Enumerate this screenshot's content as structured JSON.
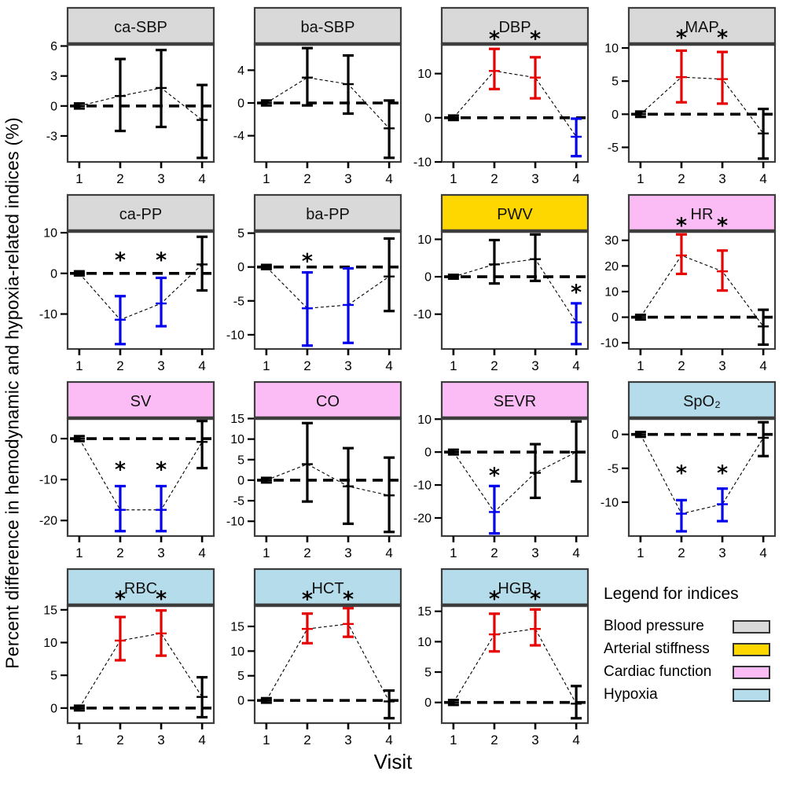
{
  "figure": {
    "ylabel": "Percent difference in hemodynamic and hypoxia-related indices (%)",
    "xlabel": "Visit",
    "sig_symbol": "*"
  },
  "colors": {
    "neutral": "#000000",
    "increase": "#e60000",
    "decrease": "#0000ee",
    "panel_border": "#3d3d3d",
    "group_colors": {
      "blood_pressure": "#d9d9d9",
      "arterial_stiffness": "#ffd700",
      "cardiac_function": "#fbbcf5",
      "hypoxia": "#b5dcea"
    }
  },
  "legend": {
    "title": "Legend for indices",
    "items": [
      {
        "label": "Blood pressure",
        "group": "blood_pressure"
      },
      {
        "label": "Arterial stiffness",
        "group": "arterial_stiffness"
      },
      {
        "label": "Cardiac function",
        "group": "cardiac_function"
      },
      {
        "label": "Hypoxia",
        "group": "hypoxia"
      }
    ]
  },
  "chart_data": {
    "type": "line",
    "x": [
      1,
      2,
      3,
      4
    ],
    "xlabel": "Visit",
    "ylabel": "Percent difference in hemodynamic and hypoxia-related indices (%)",
    "legend_position": "bottom-right cell",
    "grid": false,
    "panels": [
      {
        "title": "ca-SBP",
        "group": "blood_pressure",
        "ylim": [
          -5.6,
          6.2
        ],
        "yticks": [
          6,
          3,
          0,
          -3
        ],
        "points": [
          {
            "visit": 1,
            "y": 0,
            "lo": -0.25,
            "hi": 0.25,
            "color": "neutral",
            "star": false
          },
          {
            "visit": 2,
            "y": 1.0,
            "lo": -2.5,
            "hi": 4.7,
            "color": "neutral",
            "star": false
          },
          {
            "visit": 3,
            "y": 1.8,
            "lo": -2.1,
            "hi": 5.6,
            "color": "neutral",
            "star": false
          },
          {
            "visit": 4,
            "y": -1.4,
            "lo": -5.2,
            "hi": 2.1,
            "color": "neutral",
            "star": false
          }
        ]
      },
      {
        "title": "ba-SBP",
        "group": "blood_pressure",
        "ylim": [
          -7.2,
          7.2
        ],
        "yticks": [
          4,
          0,
          -4
        ],
        "points": [
          {
            "visit": 1,
            "y": 0,
            "lo": -0.3,
            "hi": 0.3,
            "color": "neutral",
            "star": false
          },
          {
            "visit": 2,
            "y": 3.1,
            "lo": -0.3,
            "hi": 6.7,
            "color": "neutral",
            "star": false
          },
          {
            "visit": 3,
            "y": 2.3,
            "lo": -1.3,
            "hi": 5.8,
            "color": "neutral",
            "star": false
          },
          {
            "visit": 4,
            "y": -3.1,
            "lo": -6.7,
            "hi": 0.3,
            "color": "neutral",
            "star": false
          }
        ]
      },
      {
        "title": "DBP",
        "group": "blood_pressure",
        "ylim": [
          -10,
          16.7
        ],
        "yticks": [
          10,
          0,
          -10
        ],
        "points": [
          {
            "visit": 1,
            "y": 0,
            "lo": -0.5,
            "hi": 0.5,
            "color": "neutral",
            "star": false
          },
          {
            "visit": 2,
            "y": 10.6,
            "lo": 6.5,
            "hi": 15.6,
            "color": "increase",
            "star": true,
            "star_y": 18.4
          },
          {
            "visit": 3,
            "y": 9.1,
            "lo": 4.4,
            "hi": 13.7,
            "color": "increase",
            "star": true,
            "star_y": 18.4
          },
          {
            "visit": 4,
            "y": -4.3,
            "lo": -8.7,
            "hi": -0.2,
            "color": "decrease",
            "star": false
          }
        ]
      },
      {
        "title": "MAP",
        "group": "blood_pressure",
        "ylim": [
          -7.2,
          10.6
        ],
        "yticks": [
          10,
          5,
          0,
          -5
        ],
        "points": [
          {
            "visit": 1,
            "y": 0,
            "lo": -0.4,
            "hi": 0.4,
            "color": "neutral",
            "star": false
          },
          {
            "visit": 2,
            "y": 5.6,
            "lo": 1.8,
            "hi": 9.6,
            "color": "increase",
            "star": true,
            "star_y": 11.9
          },
          {
            "visit": 3,
            "y": 5.3,
            "lo": 1.6,
            "hi": 9.4,
            "color": "increase",
            "star": true,
            "star_y": 11.9
          },
          {
            "visit": 4,
            "y": -2.9,
            "lo": -6.7,
            "hi": 0.8,
            "color": "neutral",
            "star": false
          }
        ]
      },
      {
        "title": "ca-PP",
        "group": "blood_pressure",
        "ylim": [
          -18.6,
          10.4
        ],
        "yticks": [
          10,
          0,
          -10
        ],
        "points": [
          {
            "visit": 1,
            "y": 0,
            "lo": -0.5,
            "hi": 0.5,
            "color": "neutral",
            "star": false
          },
          {
            "visit": 2,
            "y": -11.4,
            "lo": -17.4,
            "hi": -5.6,
            "color": "decrease",
            "star": true,
            "star_y": 3.8
          },
          {
            "visit": 3,
            "y": -7.4,
            "lo": -13.0,
            "hi": -1.1,
            "color": "decrease",
            "star": true,
            "star_y": 3.8
          },
          {
            "visit": 4,
            "y": 2.2,
            "lo": -4.2,
            "hi": 9.0,
            "color": "neutral",
            "star": false
          }
        ]
      },
      {
        "title": "ba-PP",
        "group": "blood_pressure",
        "ylim": [
          -12.1,
          5.3
        ],
        "yticks": [
          5,
          0,
          -5,
          -10
        ],
        "points": [
          {
            "visit": 1,
            "y": 0,
            "lo": -0.3,
            "hi": 0.3,
            "color": "neutral",
            "star": false
          },
          {
            "visit": 2,
            "y": -6.1,
            "lo": -11.6,
            "hi": -0.8,
            "color": "decrease",
            "star": true,
            "star_y": 1.2
          },
          {
            "visit": 3,
            "y": -5.6,
            "lo": -11.2,
            "hi": -0.2,
            "color": "decrease",
            "star": false
          },
          {
            "visit": 4,
            "y": -1.4,
            "lo": -6.5,
            "hi": 4.2,
            "color": "neutral",
            "star": false
          }
        ]
      },
      {
        "title": "PWV",
        "group": "arterial_stiffness",
        "ylim": [
          -19.3,
          12.2
        ],
        "yticks": [
          10,
          0,
          -10
        ],
        "points": [
          {
            "visit": 1,
            "y": 0,
            "lo": -0.5,
            "hi": 0.5,
            "color": "neutral",
            "star": false
          },
          {
            "visit": 2,
            "y": 3.3,
            "lo": -1.8,
            "hi": 9.8,
            "color": "neutral",
            "star": false
          },
          {
            "visit": 3,
            "y": 4.7,
            "lo": -1.1,
            "hi": 11.3,
            "color": "neutral",
            "star": false
          },
          {
            "visit": 4,
            "y": -12.2,
            "lo": -18.0,
            "hi": -7.1,
            "color": "decrease",
            "star": true,
            "star_y": -3.6
          }
        ]
      },
      {
        "title": "HR",
        "group": "cardiac_function",
        "ylim": [
          -12.4,
          33.6
        ],
        "yticks": [
          30,
          20,
          10,
          0,
          -10
        ],
        "points": [
          {
            "visit": 1,
            "y": 0,
            "lo": -0.9,
            "hi": 0.9,
            "color": "neutral",
            "star": false
          },
          {
            "visit": 2,
            "y": 24.1,
            "lo": 16.9,
            "hi": 32.3,
            "color": "increase",
            "star": true,
            "star_y": 36.6
          },
          {
            "visit": 3,
            "y": 17.9,
            "lo": 10.4,
            "hi": 26.0,
            "color": "increase",
            "star": true,
            "star_y": 36.6
          },
          {
            "visit": 4,
            "y": -3.6,
            "lo": -10.7,
            "hi": 2.9,
            "color": "neutral",
            "star": false
          }
        ]
      },
      {
        "title": "SV",
        "group": "cardiac_function",
        "ylim": [
          -23.8,
          5.0
        ],
        "yticks": [
          0,
          -10,
          -20
        ],
        "points": [
          {
            "visit": 1,
            "y": 0,
            "lo": -0.6,
            "hi": 0.6,
            "color": "neutral",
            "star": false
          },
          {
            "visit": 2,
            "y": -17.4,
            "lo": -22.6,
            "hi": -11.6,
            "color": "decrease",
            "star": true,
            "star_y": -7.0
          },
          {
            "visit": 3,
            "y": -17.4,
            "lo": -22.6,
            "hi": -11.6,
            "color": "decrease",
            "star": true,
            "star_y": -7.0
          },
          {
            "visit": 4,
            "y": -0.8,
            "lo": -7.2,
            "hi": 4.3,
            "color": "neutral",
            "star": false
          }
        ]
      },
      {
        "title": "CO",
        "group": "cardiac_function",
        "ylim": [
          -13.6,
          15.1
        ],
        "yticks": [
          15,
          10,
          5,
          0,
          -5,
          -10
        ],
        "points": [
          {
            "visit": 1,
            "y": 0,
            "lo": -0.55,
            "hi": 0.55,
            "color": "neutral",
            "star": false
          },
          {
            "visit": 2,
            "y": 3.9,
            "lo": -5.2,
            "hi": 13.9,
            "color": "neutral",
            "star": false
          },
          {
            "visit": 3,
            "y": -1.5,
            "lo": -10.6,
            "hi": 7.8,
            "color": "neutral",
            "star": false
          },
          {
            "visit": 4,
            "y": -3.7,
            "lo": -12.6,
            "hi": 5.5,
            "color": "neutral",
            "star": false
          }
        ]
      },
      {
        "title": "SEVR",
        "group": "cardiac_function",
        "ylim": [
          -25.5,
          10.3
        ],
        "yticks": [
          10,
          0,
          -10,
          -20
        ],
        "points": [
          {
            "visit": 1,
            "y": 0,
            "lo": -0.7,
            "hi": 0.7,
            "color": "neutral",
            "star": false
          },
          {
            "visit": 2,
            "y": -18.2,
            "lo": -24.7,
            "hi": -10.3,
            "color": "decrease",
            "star": true,
            "star_y": -6.4
          },
          {
            "visit": 3,
            "y": -6.3,
            "lo": -13.9,
            "hi": 2.4,
            "color": "neutral",
            "star": false
          },
          {
            "visit": 4,
            "y": 0,
            "lo": -8.9,
            "hi": 9.3,
            "color": "neutral",
            "star": false
          }
        ]
      },
      {
        "title": "SpO₂",
        "group": "hypoxia",
        "ylim": [
          -15.0,
          2.4
        ],
        "yticks": [
          0,
          -5,
          -10
        ],
        "points": [
          {
            "visit": 1,
            "y": 0,
            "lo": -0.35,
            "hi": 0.35,
            "color": "neutral",
            "star": false
          },
          {
            "visit": 2,
            "y": -11.7,
            "lo": -14.3,
            "hi": -9.7,
            "color": "decrease",
            "star": true,
            "star_y": -5.4
          },
          {
            "visit": 3,
            "y": -10.3,
            "lo": -12.8,
            "hi": -8.0,
            "color": "decrease",
            "star": true,
            "star_y": -5.4
          },
          {
            "visit": 4,
            "y": -0.5,
            "lo": -3.2,
            "hi": 1.8,
            "color": "neutral",
            "star": false
          }
        ]
      },
      {
        "title": "RBC",
        "group": "hypoxia",
        "ylim": [
          -2.3,
          15.7
        ],
        "yticks": [
          15,
          10,
          5,
          0
        ],
        "points": [
          {
            "visit": 1,
            "y": 0,
            "lo": -0.35,
            "hi": 0.35,
            "color": "neutral",
            "star": false
          },
          {
            "visit": 2,
            "y": 10.3,
            "lo": 7.3,
            "hi": 13.9,
            "color": "increase",
            "star": true,
            "star_y": 17.0
          },
          {
            "visit": 3,
            "y": 11.4,
            "lo": 8.0,
            "hi": 14.9,
            "color": "increase",
            "star": true,
            "star_y": 17.0
          },
          {
            "visit": 4,
            "y": 1.7,
            "lo": -1.4,
            "hi": 4.7,
            "color": "neutral",
            "star": false
          }
        ]
      },
      {
        "title": "HCT",
        "group": "hypoxia",
        "ylim": [
          -4.6,
          19.3
        ],
        "yticks": [
          15,
          10,
          5,
          0
        ],
        "points": [
          {
            "visit": 1,
            "y": 0,
            "lo": -0.45,
            "hi": 0.45,
            "color": "neutral",
            "star": false
          },
          {
            "visit": 2,
            "y": 14.5,
            "lo": 11.6,
            "hi": 17.6,
            "color": "increase",
            "star": true,
            "star_y": 21.0
          },
          {
            "visit": 3,
            "y": 15.5,
            "lo": 12.9,
            "hi": 18.7,
            "color": "increase",
            "star": true,
            "star_y": 21.0
          },
          {
            "visit": 4,
            "y": -0.2,
            "lo": -3.6,
            "hi": 2.0,
            "color": "neutral",
            "star": false
          }
        ]
      },
      {
        "title": "HGB",
        "group": "hypoxia",
        "ylim": [
          -3.4,
          16.0
        ],
        "yticks": [
          15,
          10,
          5,
          0
        ],
        "points": [
          {
            "visit": 1,
            "y": 0,
            "lo": -0.4,
            "hi": 0.4,
            "color": "neutral",
            "star": false
          },
          {
            "visit": 2,
            "y": 11.2,
            "lo": 8.4,
            "hi": 14.6,
            "color": "increase",
            "star": true,
            "star_y": 17.4
          },
          {
            "visit": 3,
            "y": 12.1,
            "lo": 9.4,
            "hi": 15.3,
            "color": "increase",
            "star": true,
            "star_y": 17.4
          },
          {
            "visit": 4,
            "y": -0.2,
            "lo": -2.6,
            "hi": 2.7,
            "color": "neutral",
            "star": false
          }
        ]
      }
    ]
  }
}
